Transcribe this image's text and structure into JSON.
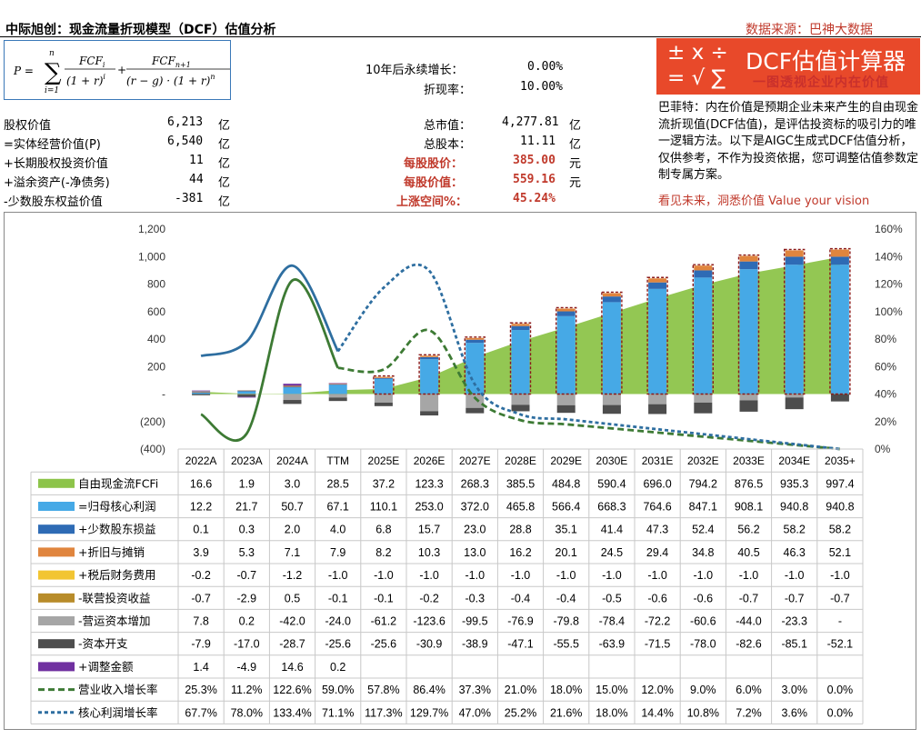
{
  "header": {
    "title": "中际旭创：现金流量折现模型（DCF）估值分析",
    "source": "数据来源：巴神大数据"
  },
  "params": {
    "perpetual_growth_label": "10年后永续增长：",
    "perpetual_growth_value": "0.00%",
    "discount_rate_label": "折现率：",
    "discount_rate_value": "10.00%"
  },
  "valuation_left": [
    {
      "label": "股权价值",
      "value": "6,213",
      "unit": "亿"
    },
    {
      "label": "=实体经营价值(P)",
      "value": "6,540",
      "unit": "亿"
    },
    {
      "label": "+长期股权投资价值",
      "value": "11",
      "unit": "亿"
    },
    {
      "label": "+溢余资产(-净债务)",
      "value": "44",
      "unit": "亿"
    },
    {
      "label": "-少数股东权益价值",
      "value": "-381",
      "unit": "亿"
    }
  ],
  "valuation_right": [
    {
      "label": "总市值：",
      "value": "4,277.81",
      "unit": "亿",
      "red": false
    },
    {
      "label": "总股本：",
      "value": "11.11",
      "unit": "亿",
      "red": false
    },
    {
      "label": "每股股价：",
      "value": "385.00",
      "unit": "元",
      "red": true
    },
    {
      "label": "每股价值：",
      "value": "559.16",
      "unit": "元",
      "red": true
    },
    {
      "label": "上涨空间%：",
      "value": "45.24%",
      "unit": "",
      "red": true
    }
  ],
  "logo": {
    "symbols_top": "± x ÷",
    "symbols_bottom": "= √ ∑",
    "title": "DCF估值计算器",
    "subtitle": "一图透视企业内在价值"
  },
  "buffett_note": "巴菲特：内在价值是预期企业未来产生的自由现金流折现值(DCF估值)，是评估投资标的吸引力的唯一逻辑方法。以下是AIGC生成式DCF估值分析，仅供参考，不作为投资依据，您可调整估值参数定制专属方案。",
  "slogan": "看见未来，洞悉价值 Value your vision",
  "colors": {
    "fcf": "#8dc44a",
    "core_profit": "#46a9e6",
    "minority": "#2e6bb5",
    "depreciation": "#e0853e",
    "fin_cost": "#f2c532",
    "assoc": "#b88c2a",
    "wc": "#a6a6a6",
    "capex": "#4d4d4d",
    "adjust": "#7030a0",
    "rev_growth": "#3d7a34",
    "profit_growth": "#2e6ea0",
    "accent": "#e8492a",
    "red_text": "#c0392b"
  },
  "chart_data": {
    "type": "bar",
    "categories": [
      "2022A",
      "2023A",
      "2024A",
      "TTM",
      "2025E",
      "2026E",
      "2027E",
      "2028E",
      "2029E",
      "2030E",
      "2031E",
      "2032E",
      "2033E",
      "2034E",
      "2035+"
    ],
    "y_left_ticks": [
      "1,200",
      "1,000",
      "800",
      "600",
      "400",
      "200",
      "-",
      "(200)",
      "(400)"
    ],
    "y_left_range": [
      -400,
      1200
    ],
    "y_right_ticks": [
      "160%",
      "140%",
      "120%",
      "100%",
      "80%",
      "60%",
      "40%",
      "20%",
      "0%"
    ],
    "y_right_range": [
      0,
      160
    ],
    "grid": false,
    "legend_placement": "table-left",
    "series": [
      {
        "name": "自由现金流FCFi",
        "kind": "area",
        "color": "#8dc44a",
        "values": [
          16.6,
          1.9,
          3.0,
          28.5,
          37.2,
          123.3,
          268.3,
          385.5,
          484.8,
          590.4,
          696.0,
          794.2,
          876.5,
          935.3,
          997.4
        ],
        "labels": [
          "16.6",
          "1.9",
          "3.0",
          "28.5",
          "37.2",
          "123.3",
          "268.3",
          "385.5",
          "484.8",
          "590.4",
          "696.0",
          "794.2",
          "876.5",
          "935.3",
          "997.4"
        ]
      },
      {
        "name": "=归母核心利润",
        "kind": "bar",
        "color": "#46a9e6",
        "values": [
          12.2,
          21.7,
          50.7,
          67.1,
          110.1,
          253.0,
          372.0,
          465.8,
          566.4,
          668.3,
          764.6,
          847.1,
          908.1,
          940.8,
          940.8
        ],
        "labels": [
          "12.2",
          "21.7",
          "50.7",
          "67.1",
          "110.1",
          "253.0",
          "372.0",
          "465.8",
          "566.4",
          "668.3",
          "764.6",
          "847.1",
          "908.1",
          "940.8",
          "940.8"
        ]
      },
      {
        "name": "+少数股东损益",
        "kind": "bar",
        "color": "#2e6bb5",
        "values": [
          0.1,
          0.3,
          2.0,
          4.0,
          6.8,
          15.7,
          23.0,
          28.8,
          35.1,
          41.4,
          47.3,
          52.4,
          56.2,
          58.2,
          58.2
        ],
        "labels": [
          "0.1",
          "0.3",
          "2.0",
          "4.0",
          "6.8",
          "15.7",
          "23.0",
          "28.8",
          "35.1",
          "41.4",
          "47.3",
          "52.4",
          "56.2",
          "58.2",
          "58.2"
        ]
      },
      {
        "name": "+折旧与摊销",
        "kind": "bar",
        "color": "#e0853e",
        "values": [
          3.9,
          5.3,
          7.1,
          7.9,
          8.2,
          10.3,
          13.0,
          16.2,
          20.1,
          24.5,
          29.4,
          34.8,
          40.5,
          46.3,
          52.1
        ],
        "labels": [
          "3.9",
          "5.3",
          "7.1",
          "7.9",
          "8.2",
          "10.3",
          "13.0",
          "16.2",
          "20.1",
          "24.5",
          "29.4",
          "34.8",
          "40.5",
          "46.3",
          "52.1"
        ]
      },
      {
        "name": "+税后财务费用",
        "kind": "bar",
        "color": "#f2c532",
        "values": [
          -0.2,
          -0.7,
          -1.2,
          -1.0,
          -1.0,
          -1.0,
          -1.0,
          -1.0,
          -1.0,
          -1.0,
          -1.0,
          -1.0,
          -1.0,
          -1.0,
          -1.0
        ],
        "labels": [
          "-0.2",
          "-0.7",
          "-1.2",
          "-1.0",
          "-1.0",
          "-1.0",
          "-1.0",
          "-1.0",
          "-1.0",
          "-1.0",
          "-1.0",
          "-1.0",
          "-1.0",
          "-1.0",
          "-1.0"
        ]
      },
      {
        "name": "-联营投资收益",
        "kind": "bar",
        "color": "#b88c2a",
        "values": [
          -0.7,
          -2.9,
          0.5,
          -0.1,
          -0.1,
          -0.2,
          -0.3,
          -0.4,
          -0.4,
          -0.5,
          -0.6,
          -0.6,
          -0.7,
          -0.7,
          -0.7
        ],
        "labels": [
          "-0.7",
          "-2.9",
          "0.5",
          "-0.1",
          "-0.1",
          "-0.2",
          "-0.3",
          "-0.4",
          "-0.4",
          "-0.5",
          "-0.6",
          "-0.6",
          "-0.7",
          "-0.7",
          "-0.7"
        ]
      },
      {
        "name": "-营运资本增加",
        "kind": "bar",
        "color": "#a6a6a6",
        "values": [
          7.8,
          0.2,
          -42.0,
          -24.0,
          -61.2,
          -123.6,
          -99.5,
          -76.9,
          -79.8,
          -78.4,
          -72.2,
          -60.6,
          -44.0,
          -23.3,
          null
        ],
        "labels": [
          "7.8",
          "0.2",
          "-42.0",
          "-24.0",
          "-61.2",
          "-123.6",
          "-99.5",
          "-76.9",
          "-79.8",
          "-78.4",
          "-72.2",
          "-60.6",
          "-44.0",
          "-23.3",
          "-"
        ]
      },
      {
        "name": "-资本开支",
        "kind": "bar",
        "color": "#4d4d4d",
        "values": [
          -7.9,
          -17.0,
          -28.7,
          -25.6,
          -25.6,
          -30.9,
          -38.9,
          -47.1,
          -55.5,
          -63.9,
          -71.5,
          -78.0,
          -82.6,
          -85.1,
          -52.1
        ],
        "labels": [
          "-7.9",
          "-17.0",
          "-28.7",
          "-25.6",
          "-25.6",
          "-30.9",
          "-38.9",
          "-47.1",
          "-55.5",
          "-63.9",
          "-71.5",
          "-78.0",
          "-82.6",
          "-85.1",
          "-52.1"
        ]
      },
      {
        "name": "+调整金额",
        "kind": "bar",
        "color": "#7030a0",
        "values": [
          1.4,
          -4.9,
          14.6,
          0.2,
          null,
          null,
          null,
          null,
          null,
          null,
          null,
          null,
          null,
          null,
          null
        ],
        "labels": [
          "1.4",
          "-4.9",
          "14.6",
          "0.2",
          "",
          "",
          "",
          "",
          "",
          "",
          "",
          "",
          "",
          "",
          ""
        ]
      },
      {
        "name": "营业收入增长率",
        "kind": "line",
        "axis": "right",
        "color": "#3d7a34",
        "values": [
          25.3,
          11.2,
          122.6,
          59.0,
          57.8,
          86.4,
          37.3,
          21.0,
          18.0,
          15.0,
          12.0,
          9.0,
          6.0,
          3.0,
          0.0
        ],
        "labels": [
          "25.3%",
          "11.2%",
          "122.6%",
          "59.0%",
          "57.8%",
          "86.4%",
          "37.3%",
          "21.0%",
          "18.0%",
          "15.0%",
          "12.0%",
          "9.0%",
          "6.0%",
          "3.0%",
          "0.0%"
        ]
      },
      {
        "name": "核心利润增长率",
        "kind": "line",
        "axis": "right",
        "color": "#2e6ea0",
        "values": [
          67.7,
          78.0,
          133.4,
          71.1,
          117.3,
          129.7,
          47.0,
          25.2,
          21.6,
          18.0,
          14.4,
          10.8,
          7.2,
          3.6,
          0.0
        ],
        "labels": [
          "67.7%",
          "78.0%",
          "133.4%",
          "71.1%",
          "117.3%",
          "129.7%",
          "47.0%",
          "25.2%",
          "21.6%",
          "18.0%",
          "14.4%",
          "10.8%",
          "7.2%",
          "3.6%",
          "0.0%"
        ]
      }
    ]
  }
}
